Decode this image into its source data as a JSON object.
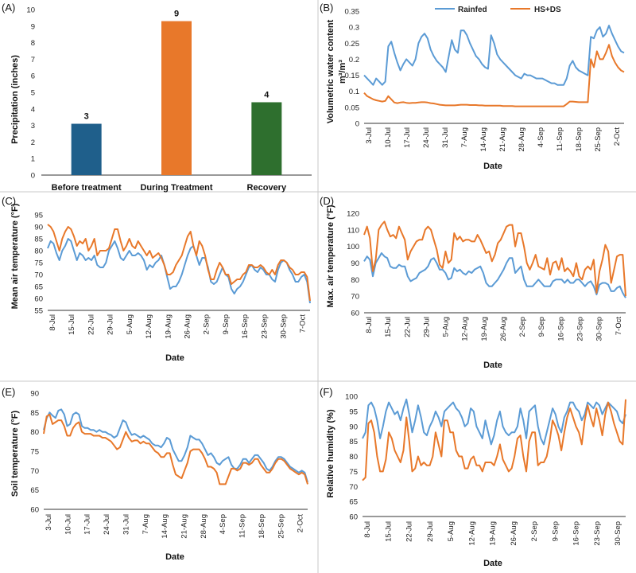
{
  "colors": {
    "rainfed": "#5b9bd5",
    "hsds": "#e8782a",
    "bar_before": "#1f5f8b",
    "bar_during": "#e8782a",
    "bar_recovery": "#2e6f2e"
  },
  "chart_data": [
    {
      "panel": "(A)",
      "type": "bar",
      "categories": [
        "Before treatment",
        "During Treatment",
        "Recovery"
      ],
      "values": [
        3.1,
        9.3,
        4.4
      ],
      "data_labels": [
        "3",
        "9",
        "4"
      ],
      "ylabel": "Precipitation (inches)",
      "ylim": [
        0,
        10
      ],
      "yticks": [
        0,
        1,
        2,
        3,
        4,
        5,
        6,
        7,
        8,
        9,
        10
      ],
      "colors": [
        "#1f5f8b",
        "#e8782a",
        "#2e6f2e"
      ]
    },
    {
      "panel": "(B)",
      "type": "line",
      "ylabel": "Volumetric water content",
      "ylabel_unit": "m³/m³",
      "xlabel": "Date",
      "ylim": [
        0,
        0.35
      ],
      "yticks": [
        0,
        0.05,
        0.1,
        0.15,
        0.2,
        0.25,
        0.3,
        0.35
      ],
      "xticks": [
        "3-Jul",
        "10-Jul",
        "17-Jul",
        "24-Jul",
        "31-Jul",
        "7-Aug",
        "14-Aug",
        "21-Aug",
        "28-Aug",
        "4-Sep",
        "11-Sep",
        "18-Sep",
        "25-Sep",
        "2-Oct"
      ],
      "legend": [
        "Rainfed",
        "HS+DS"
      ],
      "series": [
        {
          "name": "Rainfed",
          "values": [
            0.15,
            0.14,
            0.13,
            0.12,
            0.14,
            0.13,
            0.12,
            0.13,
            0.24,
            0.255,
            0.22,
            0.19,
            0.165,
            0.185,
            0.2,
            0.19,
            0.18,
            0.2,
            0.25,
            0.27,
            0.28,
            0.265,
            0.23,
            0.21,
            0.195,
            0.185,
            0.175,
            0.16,
            0.21,
            0.26,
            0.23,
            0.22,
            0.29,
            0.29,
            0.275,
            0.25,
            0.23,
            0.21,
            0.2,
            0.185,
            0.175,
            0.17,
            0.275,
            0.25,
            0.215,
            0.2,
            0.19,
            0.18,
            0.17,
            0.16,
            0.15,
            0.145,
            0.14,
            0.155,
            0.15,
            0.15,
            0.145,
            0.14,
            0.14,
            0.14,
            0.135,
            0.13,
            0.125,
            0.125,
            0.12,
            0.12,
            0.12,
            0.14,
            0.18,
            0.195,
            0.175,
            0.165,
            0.16,
            0.155,
            0.15,
            0.27,
            0.265,
            0.29,
            0.3,
            0.27,
            0.28,
            0.305,
            0.28,
            0.26,
            0.24,
            0.225,
            0.22
          ]
        },
        {
          "name": "HS+DS",
          "values": [
            0.095,
            0.085,
            0.08,
            0.075,
            0.072,
            0.07,
            0.068,
            0.07,
            0.085,
            0.075,
            0.065,
            0.063,
            0.065,
            0.066,
            0.064,
            0.063,
            0.064,
            0.064,
            0.065,
            0.066,
            0.066,
            0.065,
            0.063,
            0.062,
            0.06,
            0.058,
            0.057,
            0.056,
            0.056,
            0.056,
            0.056,
            0.057,
            0.058,
            0.058,
            0.058,
            0.057,
            0.057,
            0.057,
            0.056,
            0.056,
            0.055,
            0.055,
            0.055,
            0.055,
            0.055,
            0.055,
            0.054,
            0.054,
            0.054,
            0.054,
            0.053,
            0.053,
            0.053,
            0.053,
            0.053,
            0.053,
            0.053,
            0.053,
            0.053,
            0.053,
            0.053,
            0.053,
            0.053,
            0.053,
            0.053,
            0.053,
            0.053,
            0.06,
            0.068,
            0.068,
            0.067,
            0.066,
            0.066,
            0.066,
            0.066,
            0.2,
            0.175,
            0.225,
            0.2,
            0.2,
            0.22,
            0.245,
            0.21,
            0.19,
            0.175,
            0.165,
            0.16
          ]
        }
      ]
    },
    {
      "panel": "(C)",
      "type": "line",
      "ylabel": "Mean air temperature (°F)",
      "xlabel": "Date",
      "ylim": [
        55,
        95
      ],
      "yticks": [
        55,
        60,
        65,
        70,
        75,
        80,
        85,
        90,
        95
      ],
      "xticks": [
        "8-Jul",
        "15-Jul",
        "22-Jul",
        "29-Jul",
        "5-Aug",
        "12-Aug",
        "19-Aug",
        "26-Aug",
        "2-Sep",
        "9-Sep",
        "16-Sep",
        "23-Sep",
        "30-Sep",
        "7-Oct"
      ],
      "series": [
        {
          "name": "Rainfed",
          "values": [
            81,
            84,
            83,
            79,
            76,
            80,
            82,
            85,
            84,
            80,
            76,
            79,
            78,
            76,
            77,
            76,
            78,
            74,
            73,
            73,
            75,
            80,
            82,
            84,
            81,
            77,
            76,
            78,
            80,
            78,
            78,
            79,
            78,
            76,
            72,
            74,
            73,
            75,
            76,
            78,
            74,
            69,
            64,
            65,
            65,
            67,
            70,
            74,
            78,
            81,
            82,
            78,
            74,
            77,
            77,
            73,
            67,
            66,
            67,
            70,
            73,
            70,
            69,
            64,
            62,
            64,
            65,
            67,
            70,
            73,
            74,
            72,
            71,
            73,
            72,
            70,
            70,
            68,
            67,
            72,
            75,
            76,
            75,
            72,
            70,
            67,
            67,
            69,
            70,
            67,
            58
          ]
        },
        {
          "name": "HS+DS",
          "values": [
            91,
            90,
            88,
            84,
            80,
            85,
            88,
            90,
            89,
            86,
            82,
            84,
            83,
            85,
            80,
            82,
            85,
            78,
            80,
            80,
            80,
            81,
            85,
            89,
            89,
            84,
            80,
            82,
            85,
            82,
            81,
            84,
            82,
            80,
            78,
            80,
            77,
            78,
            79,
            77,
            74,
            70,
            70,
            71,
            74,
            76,
            78,
            82,
            86,
            88,
            82,
            78,
            84,
            82,
            78,
            72,
            68,
            68,
            72,
            75,
            73,
            70,
            70,
            66,
            67,
            68,
            68,
            70,
            71,
            74,
            74,
            73,
            73,
            74,
            73,
            71,
            70,
            72,
            70,
            74,
            76,
            76,
            75,
            73,
            72,
            70,
            70,
            71,
            71,
            69,
            59
          ]
        }
      ]
    },
    {
      "panel": "(D)",
      "type": "line",
      "ylabel": "Max. air temperature (°F)",
      "xlabel": "Date",
      "ylim": [
        60,
        120
      ],
      "yticks": [
        60,
        70,
        80,
        90,
        100,
        110,
        120
      ],
      "xticks": [
        "8-Jul",
        "15-Jul",
        "22-Jul",
        "29-Jul",
        "5-Aug",
        "12-Aug",
        "19-Aug",
        "26-Aug",
        "2-Sep",
        "9-Sep",
        "16-Sep",
        "23-Sep",
        "30-Sep",
        "7-Oct"
      ],
      "series": [
        {
          "name": "Rainfed",
          "values": [
            91,
            94,
            92,
            82,
            90,
            93,
            96,
            94,
            93,
            88,
            87,
            87,
            89,
            88,
            88,
            82,
            79,
            80,
            81,
            84,
            85,
            86,
            88,
            92,
            93,
            90,
            86,
            86,
            84,
            80,
            81,
            87,
            85,
            86,
            84,
            83,
            85,
            84,
            86,
            87,
            88,
            84,
            78,
            76,
            76,
            78,
            80,
            83,
            86,
            90,
            93,
            93,
            84,
            86,
            88,
            80,
            76,
            76,
            76,
            78,
            80,
            78,
            76,
            76,
            76,
            79,
            80,
            80,
            80,
            78,
            80,
            78,
            78,
            80,
            80,
            78,
            76,
            78,
            79,
            76,
            71,
            77,
            78,
            78,
            77,
            73,
            73,
            75,
            76,
            72,
            69
          ]
        },
        {
          "name": "HS+DS",
          "values": [
            107,
            112,
            105,
            85,
            92,
            110,
            113,
            115,
            110,
            106,
            107,
            105,
            112,
            108,
            104,
            92,
            97,
            100,
            103,
            104,
            104,
            110,
            112,
            110,
            104,
            98,
            89,
            87,
            97,
            90,
            92,
            108,
            104,
            106,
            103,
            104,
            104,
            103,
            103,
            107,
            104,
            100,
            96,
            97,
            91,
            95,
            102,
            104,
            108,
            112,
            113,
            113,
            100,
            108,
            108,
            100,
            90,
            86,
            90,
            95,
            88,
            87,
            86,
            93,
            83,
            90,
            91,
            86,
            93,
            85,
            87,
            85,
            82,
            90,
            82,
            80,
            86,
            88,
            86,
            92,
            72,
            85,
            92,
            101,
            97,
            78,
            86,
            94,
            95,
            95,
            70
          ]
        }
      ]
    },
    {
      "panel": "(E)",
      "type": "line",
      "ylabel": "Soil temperature (°F)",
      "xlabel": "Date",
      "ylim": [
        60,
        90
      ],
      "yticks": [
        60,
        65,
        70,
        75,
        80,
        85,
        90
      ],
      "xticks": [
        "3-Jul",
        "10-Jul",
        "17-Jul",
        "24-Jul",
        "31-Jul",
        "7-Aug",
        "14-Aug",
        "21-Aug",
        "28-Aug",
        "4-Sep",
        "11-Sep",
        "18-Sep",
        "25-Sep",
        "2-Oct"
      ],
      "series": [
        {
          "name": "Rainfed",
          "values": [
            80.5,
            83.5,
            85,
            84.2,
            83.6,
            85.5,
            85.8,
            84.5,
            81.5,
            82,
            84.5,
            85,
            84.5,
            81.5,
            81,
            81,
            80.5,
            80.5,
            80,
            80.5,
            80,
            80,
            79.5,
            79.2,
            78.5,
            79,
            81,
            83,
            82.5,
            80.5,
            79.2,
            79.5,
            79,
            78.5,
            79,
            78.5,
            78,
            77,
            76.5,
            76.5,
            76,
            77,
            78.5,
            78,
            75.5,
            74,
            72.5,
            72.5,
            74,
            76,
            79,
            78.5,
            78,
            78,
            77,
            75.5,
            74,
            74.5,
            73.5,
            72,
            71.5,
            72.5,
            73,
            73.5,
            71.5,
            70.5,
            70.5,
            71.5,
            73,
            73,
            72,
            73,
            74,
            74,
            73,
            72,
            70.5,
            70,
            71,
            72.5,
            73.5,
            73.5,
            73,
            72,
            71,
            70.5,
            70,
            69.5,
            70,
            69.5,
            67
          ]
        },
        {
          "name": "HS+DS",
          "values": [
            79.5,
            84,
            84.5,
            82,
            82.5,
            83,
            83,
            81.5,
            79,
            79,
            81,
            82,
            82.5,
            80,
            79.5,
            79.5,
            79.5,
            79,
            79,
            79,
            78.5,
            78.5,
            78,
            77.5,
            76.5,
            75.5,
            76,
            78,
            80,
            78.5,
            77.5,
            77.8,
            77.8,
            77,
            77.5,
            77,
            77,
            76,
            75,
            74.5,
            73.5,
            73.5,
            74.5,
            74.5,
            71.5,
            69,
            68.5,
            68,
            70,
            72,
            75,
            75.5,
            75.5,
            75.5,
            74.5,
            73,
            71,
            71,
            70.5,
            69.5,
            66.5,
            66.5,
            66.5,
            68.5,
            70.5,
            70.5,
            70,
            70.5,
            72,
            72,
            71.5,
            72,
            73,
            73,
            71.5,
            70.5,
            69.5,
            69.5,
            70.5,
            72,
            73,
            73,
            72.5,
            71.5,
            70.5,
            70,
            69.5,
            69,
            69.5,
            69,
            66.5
          ]
        }
      ]
    },
    {
      "panel": "(F)",
      "type": "line",
      "ylabel": "Relative humidity (%)",
      "xlabel": "Date",
      "ylim": [
        60,
        100
      ],
      "yticks": [
        60,
        65,
        70,
        75,
        80,
        85,
        90,
        95,
        100
      ],
      "xticks": [
        "8-Jul",
        "15-Jul",
        "22-Jul",
        "29-Jul",
        "5-Aug",
        "12-Aug",
        "19-Aug",
        "26-Aug",
        "2-Sep",
        "9-Sep",
        "16-Sep",
        "23-Sep",
        "30-Sep"
      ],
      "series": [
        {
          "name": "Rainfed",
          "values": [
            86,
            88,
            97,
            98,
            96,
            92,
            86,
            90,
            95,
            98,
            96,
            94,
            95,
            92,
            96,
            99,
            94,
            88,
            92,
            97,
            93,
            88,
            87,
            90,
            92,
            95,
            93,
            90,
            95,
            96,
            97,
            98,
            96,
            95,
            93,
            90,
            91,
            96,
            95,
            90,
            88,
            86,
            92,
            88,
            84,
            87,
            92,
            95,
            90,
            88,
            87,
            88,
            88,
            90,
            96,
            92,
            86,
            95,
            96,
            97,
            90,
            86,
            84,
            88,
            92,
            96,
            94,
            90,
            88,
            93,
            95,
            98,
            98,
            96,
            95,
            92,
            94,
            98,
            97,
            96,
            98,
            97,
            94,
            96,
            98,
            97,
            96,
            95,
            92,
            91,
            94
          ]
        },
        {
          "name": "HS+DS",
          "values": [
            72,
            73,
            91,
            92,
            88,
            80,
            75,
            75,
            79,
            88,
            86,
            82,
            80,
            78,
            82,
            93,
            85,
            75,
            76,
            80,
            77,
            78,
            77,
            77,
            80,
            88,
            84,
            80,
            92,
            92,
            88,
            88,
            82,
            80,
            80,
            76,
            76,
            79,
            80,
            77,
            77,
            75,
            78,
            78,
            78,
            77,
            80,
            84,
            79,
            77,
            75,
            76,
            80,
            86,
            87,
            80,
            75,
            85,
            88,
            88,
            77,
            78,
            78,
            80,
            85,
            92,
            90,
            87,
            82,
            88,
            93,
            96,
            93,
            90,
            88,
            84,
            92,
            97,
            93,
            90,
            96,
            92,
            87,
            94,
            98,
            95,
            91,
            88,
            85,
            84,
            99
          ]
        }
      ]
    }
  ]
}
